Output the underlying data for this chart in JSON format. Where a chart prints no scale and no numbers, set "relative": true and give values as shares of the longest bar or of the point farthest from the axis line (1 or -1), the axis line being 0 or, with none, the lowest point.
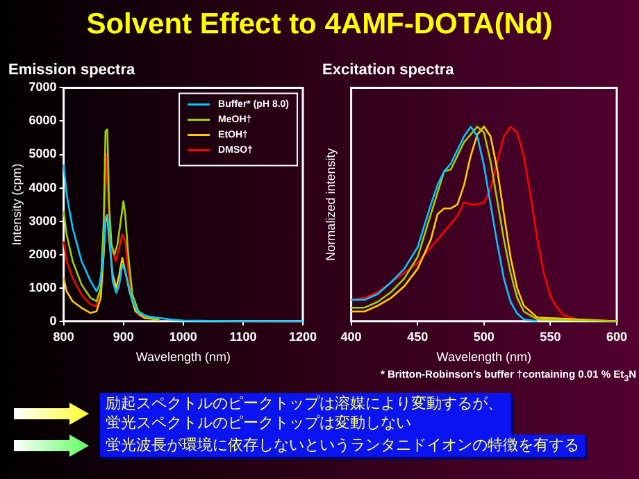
{
  "chart_data": [
    {
      "type": "line",
      "title": "Emission spectra",
      "xlabel": "Wavelength (nm)",
      "ylabel": "Intensity (cpm)",
      "xlim": [
        800,
        1200
      ],
      "xticks": [
        800,
        900,
        1000,
        1100,
        1200
      ],
      "ylim": [
        0,
        7000
      ],
      "yticks": [
        0,
        1000,
        2000,
        3000,
        4000,
        5000,
        6000,
        7000
      ],
      "grid": false,
      "legend": "top right",
      "marker": "none",
      "line_style": "solid",
      "series": [
        {
          "name": "Buffer* (pH 8.0)",
          "color": "#00c8ff",
          "x": [
            800,
            805,
            815,
            830,
            845,
            855,
            860,
            865,
            870,
            873,
            877,
            882,
            888,
            893,
            898,
            903,
            908,
            915,
            925,
            940,
            960,
            980,
            1000,
            1100,
            1200
          ],
          "values": [
            4700,
            3800,
            2800,
            1800,
            1200,
            900,
            1100,
            1700,
            3100,
            3200,
            2500,
            1200,
            850,
            1100,
            1700,
            1500,
            1100,
            600,
            250,
            150,
            100,
            50,
            20,
            0,
            0
          ]
        },
        {
          "name": "MeOH†",
          "color": "#a0d000",
          "x": [
            800,
            805,
            815,
            830,
            845,
            855,
            862,
            867,
            870,
            873,
            876,
            880,
            885,
            890,
            897,
            900,
            903,
            908,
            915,
            925,
            940,
            960
          ],
          "values": [
            3300,
            2600,
            1800,
            1100,
            700,
            600,
            1000,
            3000,
            5700,
            5750,
            3500,
            2300,
            2000,
            2300,
            3200,
            3600,
            3200,
            2000,
            800,
            300,
            120,
            60
          ]
        },
        {
          "name": "EtOH†",
          "color": "#ffcc00",
          "x": [
            800,
            805,
            815,
            830,
            845,
            855,
            862,
            867,
            870,
            873,
            877,
            882,
            888,
            893,
            898,
            903,
            910,
            920,
            935,
            960
          ],
          "values": [
            1300,
            900,
            600,
            400,
            250,
            300,
            700,
            2000,
            3000,
            3100,
            2300,
            1400,
            1000,
            1400,
            1900,
            1500,
            900,
            300,
            100,
            50
          ]
        },
        {
          "name": "DMSO†",
          "color": "#ff0000",
          "x": [
            800,
            805,
            815,
            830,
            845,
            855,
            862,
            867,
            870,
            872,
            875,
            880,
            887,
            893,
            898,
            903,
            908,
            915,
            925,
            940,
            960
          ],
          "values": [
            2400,
            1800,
            1300,
            800,
            500,
            450,
            1000,
            2800,
            4000,
            5000,
            3500,
            2200,
            1800,
            2200,
            2600,
            2400,
            1500,
            600,
            200,
            100,
            50
          ]
        }
      ]
    },
    {
      "type": "line",
      "title": "Excitation spectra",
      "xlabel": "Wavelength (nm)",
      "ylabel": "Normalized intensity",
      "xlim": [
        400,
        600
      ],
      "xticks": [
        400,
        450,
        500,
        550,
        600
      ],
      "relative": true,
      "grid": false,
      "marker": "none",
      "line_style": "solid",
      "annotations": [
        "* Britton-Robinson's buffer  †containing 0.01 % Et$_{3}$N"
      ],
      "series": [
        {
          "color": "#00c8ff",
          "x": [
            400,
            410,
            420,
            430,
            440,
            450,
            460,
            465,
            470,
            475,
            480,
            485,
            490,
            495,
            500,
            505,
            510,
            515,
            520,
            525,
            530,
            540
          ],
          "values": [
            0.11,
            0.11,
            0.14,
            0.2,
            0.27,
            0.38,
            0.6,
            0.7,
            0.77,
            0.81,
            0.88,
            0.95,
            1.0,
            0.95,
            0.8,
            0.6,
            0.4,
            0.22,
            0.1,
            0.04,
            0.01,
            0
          ]
        },
        {
          "color": "#a0d000",
          "x": [
            400,
            410,
            420,
            430,
            440,
            450,
            460,
            465,
            470,
            475,
            480,
            485,
            490,
            495,
            500,
            505,
            510,
            515,
            520,
            525,
            530,
            540,
            600
          ],
          "values": [
            0.07,
            0.07,
            0.1,
            0.15,
            0.22,
            0.33,
            0.55,
            0.66,
            0.77,
            0.78,
            0.85,
            0.92,
            0.96,
            1.0,
            0.97,
            0.82,
            0.62,
            0.42,
            0.25,
            0.12,
            0.05,
            0.01,
            0
          ]
        },
        {
          "color": "#ffcc00",
          "x": [
            400,
            410,
            420,
            430,
            440,
            450,
            460,
            465,
            470,
            475,
            480,
            485,
            490,
            495,
            500,
            505,
            510,
            515,
            520,
            525,
            530,
            540,
            600
          ],
          "values": [
            0.05,
            0.05,
            0.08,
            0.12,
            0.18,
            0.27,
            0.42,
            0.55,
            0.58,
            0.58,
            0.6,
            0.7,
            0.85,
            0.96,
            1.0,
            0.95,
            0.78,
            0.55,
            0.33,
            0.17,
            0.08,
            0.02,
            0
          ]
        },
        {
          "color": "#ff0000",
          "x": [
            400,
            410,
            420,
            430,
            440,
            450,
            460,
            470,
            480,
            485,
            490,
            495,
            500,
            505,
            510,
            515,
            520,
            525,
            530,
            535,
            540,
            545,
            550,
            555,
            560,
            570,
            600
          ],
          "values": [
            0.11,
            0.12,
            0.15,
            0.2,
            0.25,
            0.3,
            0.38,
            0.46,
            0.54,
            0.61,
            0.6,
            0.6,
            0.61,
            0.68,
            0.82,
            0.95,
            1.0,
            0.97,
            0.85,
            0.65,
            0.43,
            0.25,
            0.13,
            0.07,
            0.03,
            0.01,
            0
          ]
        }
      ]
    },
    {
      "type": "other",
      "title": "Solvent Effect to 4AMF-DOTA(Nd)",
      "annotations": [
        "励起スペクトルのピークトップは溶媒により変動するが、蛍光スペクトルのピークトップは変動しない",
        "蛍光波長が環境に依存しないというランタニドイオンの特徴を有する"
      ]
    }
  ]
}
